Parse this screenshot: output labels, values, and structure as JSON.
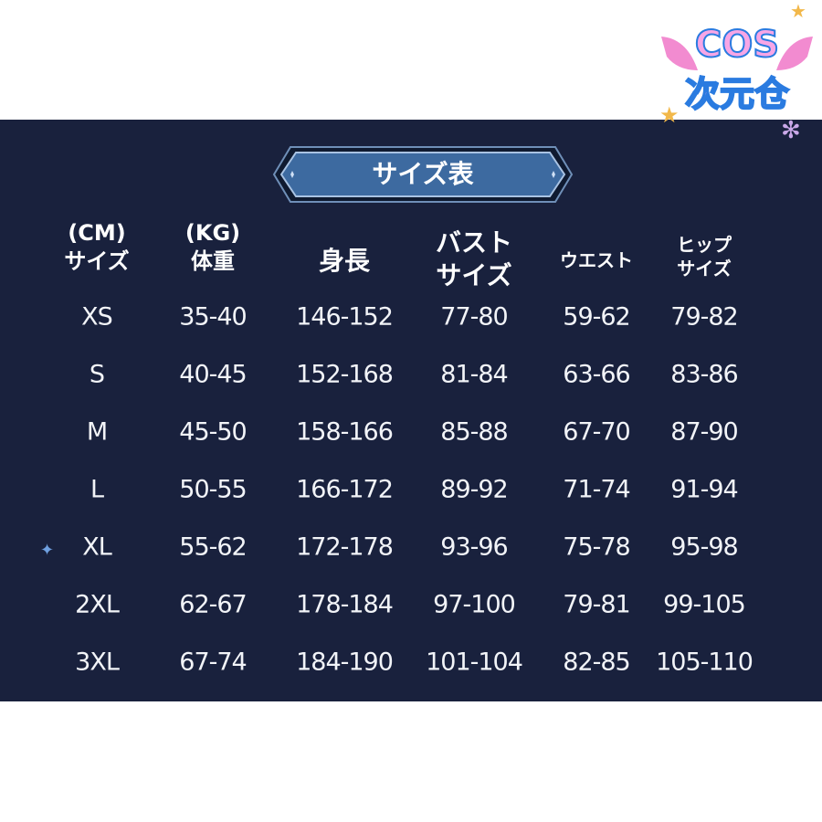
{
  "logo": {
    "line1": "COS",
    "line2": "次元仓"
  },
  "title": "サイズ表",
  "colors": {
    "panel": "#19213d",
    "badge": "#3d6aa0",
    "text": "#ffffff"
  },
  "headers": [
    {
      "line1": "(CM)",
      "line2": "サイズ"
    },
    {
      "line1": "(KG)",
      "line2": "体重"
    },
    {
      "line1": "",
      "line2": "身長"
    },
    {
      "line1": "バスト",
      "line2": "サイズ"
    },
    {
      "line1": "",
      "line2": "ウエスト"
    },
    {
      "line1": "ヒップ",
      "line2": "サイズ"
    }
  ],
  "rows": [
    [
      "XS",
      "35-40",
      "146-152",
      "77-80",
      "59-62",
      "79-82"
    ],
    [
      "S",
      "40-45",
      "152-168",
      "81-84",
      "63-66",
      "83-86"
    ],
    [
      "M",
      "45-50",
      "158-166",
      "85-88",
      "67-70",
      "87-90"
    ],
    [
      "L",
      "50-55",
      "166-172",
      "89-92",
      "71-74",
      "91-94"
    ],
    [
      "XL",
      "55-62",
      "172-178",
      "93-96",
      "75-78",
      "95-98"
    ],
    [
      "2XL",
      "62-67",
      "178-184",
      "97-100",
      "79-81",
      "99-105"
    ],
    [
      "3XL",
      "67-74",
      "184-190",
      "101-104",
      "82-85",
      "105-110"
    ]
  ]
}
